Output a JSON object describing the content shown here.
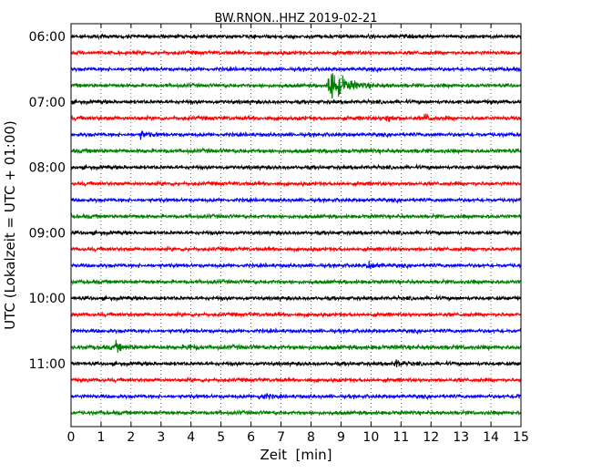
{
  "chart_data": {
    "type": "line",
    "title": "BW.RNON..HHZ 2019-02-21",
    "xlabel": "Zeit  [min]",
    "ylabel": "UTC (Lokalzeit = UTC + 01:00)",
    "xlim": [
      0,
      15
    ],
    "x_ticks": [
      "0",
      "1",
      "2",
      "3",
      "4",
      "5",
      "6",
      "7",
      "8",
      "9",
      "10",
      "11",
      "12",
      "13",
      "14",
      "15"
    ],
    "y_ticks": [
      "06:00",
      "07:00",
      "08:00",
      "09:00",
      "10:00",
      "11:00"
    ],
    "grid": "vertical dotted",
    "trace_colors": [
      "#000000",
      "#ff0000",
      "#0000ff",
      "#008000"
    ],
    "traces": [
      {
        "start": "06:00",
        "amplitude": 1.0,
        "events": []
      },
      {
        "start": "06:15",
        "amplitude": 1.0,
        "events": []
      },
      {
        "start": "06:30",
        "amplitude": 1.0,
        "events": []
      },
      {
        "start": "06:45",
        "amplitude": 1.0,
        "events": [
          {
            "minute": 8.6,
            "strength": 9
          }
        ]
      },
      {
        "start": "07:00",
        "amplitude": 1.0,
        "events": []
      },
      {
        "start": "07:15",
        "amplitude": 1.1,
        "events": [
          {
            "minute": 10.5,
            "strength": 2
          },
          {
            "minute": 11.8,
            "strength": 2
          }
        ]
      },
      {
        "start": "07:30",
        "amplitude": 1.0,
        "events": [
          {
            "minute": 2.3,
            "strength": 2
          }
        ]
      },
      {
        "start": "07:45",
        "amplitude": 1.1,
        "events": []
      },
      {
        "start": "08:00",
        "amplitude": 1.0,
        "events": []
      },
      {
        "start": "08:15",
        "amplitude": 1.0,
        "events": []
      },
      {
        "start": "08:30",
        "amplitude": 1.0,
        "events": []
      },
      {
        "start": "08:45",
        "amplitude": 1.0,
        "events": []
      },
      {
        "start": "09:00",
        "amplitude": 1.0,
        "events": []
      },
      {
        "start": "09:15",
        "amplitude": 1.0,
        "events": []
      },
      {
        "start": "09:30",
        "amplitude": 1.0,
        "events": [
          {
            "minute": 9.9,
            "strength": 2
          }
        ]
      },
      {
        "start": "09:45",
        "amplitude": 1.0,
        "events": []
      },
      {
        "start": "10:00",
        "amplitude": 1.0,
        "events": []
      },
      {
        "start": "10:15",
        "amplitude": 1.0,
        "events": []
      },
      {
        "start": "10:30",
        "amplitude": 1.0,
        "events": []
      },
      {
        "start": "10:45",
        "amplitude": 1.2,
        "events": [
          {
            "minute": 1.5,
            "strength": 2
          },
          {
            "minute": 3.9,
            "strength": 1.5
          }
        ]
      },
      {
        "start": "11:00",
        "amplitude": 1.0,
        "events": [
          {
            "minute": 10.8,
            "strength": 2
          }
        ]
      },
      {
        "start": "11:15",
        "amplitude": 1.0,
        "events": []
      },
      {
        "start": "11:30",
        "amplitude": 1.0,
        "events": [
          {
            "minute": 6.3,
            "strength": 2
          },
          {
            "minute": 14.8,
            "strength": 1.5
          }
        ]
      },
      {
        "start": "11:45",
        "amplitude": 1.0,
        "events": []
      }
    ]
  }
}
